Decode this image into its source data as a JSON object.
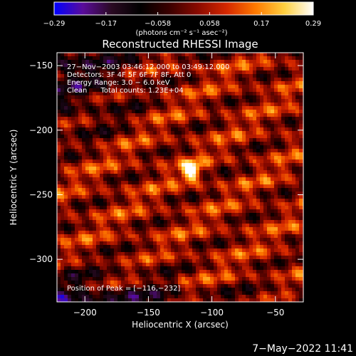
{
  "chart_data": {
    "type": "heatmap",
    "title": "Reconstructed RHESSI Image",
    "xlabel": "Heliocentric X (arcsec)",
    "ylabel": "Heliocentric Y (arcsec)",
    "xlim": [
      -222,
      -28
    ],
    "ylim": [
      -333,
      -140
    ],
    "x_ticks": [
      -200,
      -150,
      -100,
      -50
    ],
    "x_tick_labels": [
      "−200",
      "−150",
      "−100",
      "−50"
    ],
    "y_ticks": [
      -150,
      -200,
      -250,
      -300
    ],
    "y_tick_labels": [
      "−150",
      "−200",
      "−250",
      "−300"
    ],
    "peak": {
      "x": -116,
      "y": -232
    },
    "annotations": [
      "27−Nov−2003 03:46:12.000 to 03:49:12.000",
      "Detectors: 3F 4F 5F 6F 7F 8F, Att 0",
      "Energy Range: 3.0 − 6.0 keV",
      "Clean      Total counts: 1.23E+04"
    ],
    "peak_label": "Position of Peak = [−116,−232]",
    "colorbar": {
      "min": -0.29,
      "max": 0.29,
      "tick_labels": [
        "−0.29",
        "−0.17",
        "−0.058",
        "0.058",
        "0.17",
        "0.29"
      ],
      "unit_label": "(photons cm⁻² s⁻¹ asec⁻²)",
      "colormap": [
        "#0000ff",
        "#5a0c9a",
        "#2a0a22",
        "#000000",
        "#3a0000",
        "#8a0a00",
        "#d62800",
        "#ff7a00",
        "#ffd040",
        "#ffffff"
      ]
    }
  },
  "footer_timestamp": "7−May−2022 11:41"
}
